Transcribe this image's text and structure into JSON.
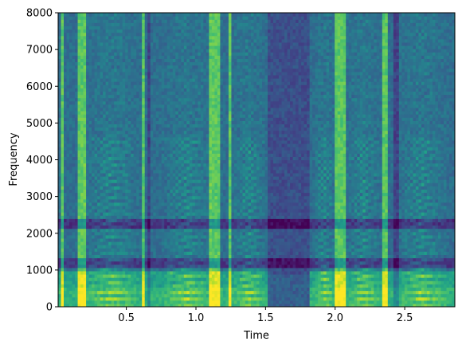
{
  "chart_data": {
    "type": "heatmap",
    "title": "",
    "xlabel": "Time",
    "ylabel": "Frequency",
    "xlim": [
      0.01,
      2.86
    ],
    "ylim": [
      0,
      8000
    ],
    "x_ticks": [
      0.5,
      1.0,
      1.5,
      2.0,
      2.5
    ],
    "x_tick_labels": [
      "0.5",
      "1.0",
      "1.5",
      "2.0",
      "2.5"
    ],
    "y_ticks": [
      0,
      1000,
      2000,
      3000,
      4000,
      5000,
      6000,
      7000,
      8000
    ],
    "y_tick_labels": [
      "0",
      "1000",
      "2000",
      "3000",
      "4000",
      "5000",
      "6000",
      "7000",
      "8000"
    ],
    "colormap": "viridis",
    "grid": false,
    "legend": "none",
    "bright_time_bands": [
      [
        0.03,
        0.06
      ],
      [
        0.16,
        0.21
      ],
      [
        0.61,
        0.64
      ],
      [
        1.1,
        1.18
      ],
      [
        1.23,
        1.26
      ],
      [
        1.99,
        2.07
      ],
      [
        2.33,
        2.37
      ]
    ],
    "dark_time_bands": [
      [
        1.52,
        1.82
      ],
      [
        0.65,
        0.68
      ],
      [
        2.42,
        2.45
      ]
    ],
    "dark_frequency_bands": [
      [
        2100,
        2400
      ],
      [
        1050,
        1300
      ]
    ],
    "harmonic_segments": [
      [
        0.18,
        0.6
      ],
      [
        0.76,
        1.12
      ],
      [
        1.26,
        1.5
      ],
      [
        1.85,
        2.0
      ],
      [
        2.08,
        2.33
      ],
      [
        2.45,
        2.8
      ]
    ]
  }
}
